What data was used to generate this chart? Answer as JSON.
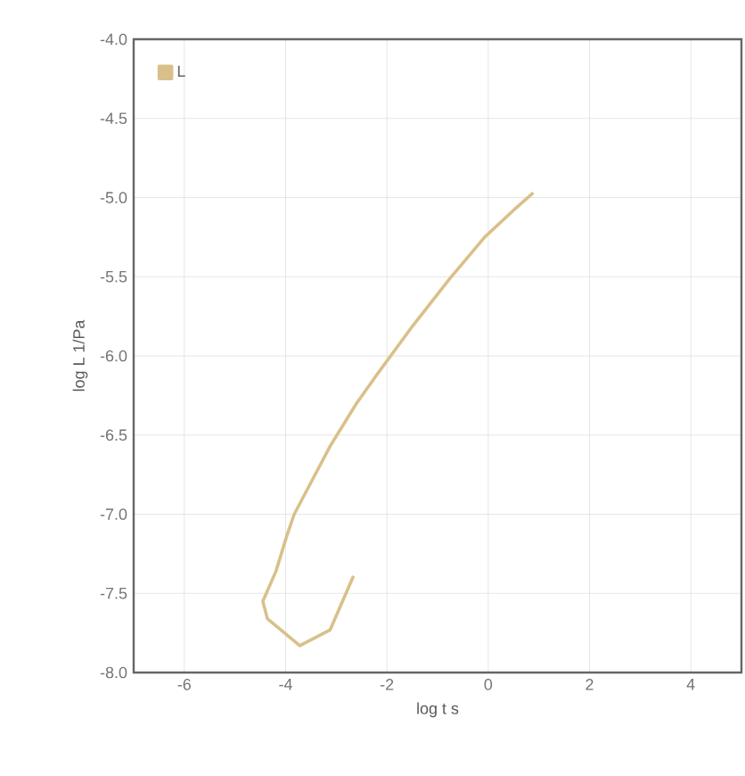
{
  "chart_data": {
    "type": "line",
    "xlabel": "log t s",
    "ylabel": "log L 1/Pa",
    "xlim": [
      -7,
      5
    ],
    "ylim": [
      -8,
      -4
    ],
    "xticks": [
      -6,
      -4,
      -2,
      0,
      2,
      4
    ],
    "yticks": [
      {
        "value": -4,
        "label": "-4.0"
      },
      {
        "value": -4.5,
        "label": "-4.5"
      },
      {
        "value": -5,
        "label": "-5.0"
      },
      {
        "value": -5.5,
        "label": "-5.5"
      },
      {
        "value": -6,
        "label": "-6.0"
      },
      {
        "value": -6.5,
        "label": "-6.5"
      },
      {
        "value": -7,
        "label": "-7.0"
      },
      {
        "value": -7.5,
        "label": "-7.5"
      },
      {
        "value": -8,
        "label": "-8.0"
      }
    ],
    "grid": true,
    "legend": "top left",
    "marker": "none",
    "line_style": "solid",
    "series": [
      {
        "name": "L",
        "color": "#d9c08a",
        "x": [
          -2.66,
          -3.12,
          -3.72,
          -4.36,
          -4.45,
          -4.19,
          -3.97,
          -3.83,
          -3.5,
          -3.12,
          -2.6,
          -2.2,
          -1.49,
          -0.78,
          -0.07,
          0.5,
          0.89
        ],
        "values": [
          -7.39,
          -7.73,
          -7.83,
          -7.66,
          -7.55,
          -7.36,
          -7.13,
          -7.0,
          -6.8,
          -6.57,
          -6.3,
          -6.12,
          -5.81,
          -5.52,
          -5.25,
          -5.08,
          -4.97
        ]
      }
    ]
  }
}
